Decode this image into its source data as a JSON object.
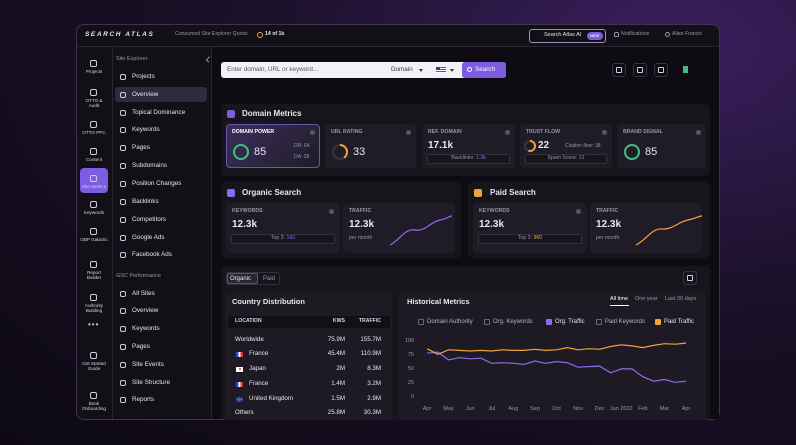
{
  "header": {
    "logo": "SEARCH ATLAS",
    "quota_label": "Consumed Site Explorer Quota:",
    "quota": "14 of 1k",
    "ai_button": "Search Atlas AI",
    "ai_badge": "NEW",
    "notifications": "Notifications",
    "user": "Allan Francis"
  },
  "rail": [
    "Projects",
    "OTTO & Audit",
    "OTTO PPC",
    "Content",
    "Site Metrics",
    "Keywords",
    "GBP Galactic",
    "Report Builder",
    "Authority Building",
    "Get Started Guide",
    "Book Onboarding"
  ],
  "sidebar": {
    "explorer_title": "Site Explorer",
    "explorer_items": [
      "Projects",
      "Overview",
      "Topical Dominance",
      "Keywords",
      "Pages",
      "Subdomains",
      "Position Changes",
      "Backlinks",
      "Competitors",
      "Google Ads",
      "Facebook Ads"
    ],
    "gsc_title": "GSC Performance",
    "gsc_items": [
      "All Sites",
      "Overview",
      "Keywords",
      "Pages",
      "Site Events",
      "Site Structure",
      "Reports"
    ]
  },
  "search": {
    "placeholder": "Enter domain, URL or keyword...",
    "mode": "Domain",
    "button": "Search"
  },
  "domain_metrics": {
    "title": "Domain Metrics",
    "cards": [
      {
        "label": "DOMAIN POWER",
        "value": 85,
        "details": [
          "DR: 64",
          "DA: 28"
        ]
      },
      {
        "label": "URL RATING",
        "value": 33
      },
      {
        "label": "REF. DOMAIN",
        "value": "17.1k",
        "note_label": "Backlinks:",
        "note_value": "1.3k"
      },
      {
        "label": "TRUST FLOW",
        "value": 22,
        "details": [
          "Citation flow: 38"
        ],
        "note_label": "Spam Score:",
        "note_value": 31
      },
      {
        "label": "BRAND SIGNAL",
        "value": 85
      }
    ]
  },
  "organic": {
    "title": "Organic Search",
    "keywords": {
      "label": "KEYWORDS",
      "value": "12.3k",
      "note_label": "Top 3:",
      "note_value": 160
    },
    "traffic": {
      "label": "TRAFFIC",
      "value": "12.3k",
      "note": "per month"
    }
  },
  "paid": {
    "title": "Paid Search",
    "keywords": {
      "label": "KEYWORDS",
      "value": "12.3k",
      "note_label": "Top 3:",
      "note_value": 960
    },
    "traffic": {
      "label": "TRAFFIC",
      "value": "12.3k",
      "note": "per month"
    }
  },
  "tabs": [
    "Organic",
    "Paid"
  ],
  "country": {
    "title": "Country Distribution",
    "columns": [
      "LOCATION",
      "KWS",
      "TRAFFIC"
    ],
    "rows": [
      [
        "Worldwide",
        "75.9M",
        "155.7M"
      ],
      [
        "France",
        "45.4M",
        "110.9M"
      ],
      [
        "Japan",
        "2M",
        "8.3M"
      ],
      [
        "France",
        "1.4M",
        "3.2M"
      ],
      [
        "United Kingdom",
        "1.5M",
        "2.9M"
      ],
      [
        "Others",
        "25.8M",
        "30.3M"
      ]
    ]
  },
  "chart_data": {
    "type": "line",
    "title": "Historical Metrics",
    "range_options": [
      "All time",
      "One year",
      "Last 30 days"
    ],
    "categories": [
      "Apr",
      null,
      "May",
      null,
      "Jun",
      null,
      "Jul",
      null,
      "Aug",
      null,
      "Sep",
      null,
      "Oct",
      null,
      "Nov",
      null,
      "Dec",
      null,
      "Jan 2022",
      null,
      "Feb",
      null,
      "Mar",
      null,
      "Apr"
    ],
    "series": [
      {
        "name": "Domain Authority",
        "checked": false
      },
      {
        "name": "Org. Keywords",
        "checked": false
      },
      {
        "name": "Org. Traffic",
        "checked": true,
        "color": "#8b6cf0",
        "values": [
          80,
          82,
          68,
          72,
          70,
          71,
          62,
          63,
          62,
          60,
          66,
          62,
          65,
          63,
          55,
          56,
          57,
          45,
          52,
          52,
          38,
          30,
          33,
          28,
          30
        ]
      },
      {
        "name": "Paid Keywords",
        "checked": false
      },
      {
        "name": "Paid Traffic",
        "checked": true,
        "color": "#f0a23b",
        "values": [
          88,
          78,
          86,
          85,
          84,
          85,
          84,
          86,
          85,
          85,
          87,
          85,
          86,
          90,
          86,
          88,
          87,
          92,
          95,
          93,
          90,
          94,
          97,
          96,
          98
        ]
      }
    ],
    "ylim": [
      0,
      100
    ],
    "yticks": [
      0,
      25,
      50,
      75,
      100
    ],
    "grid": true
  }
}
